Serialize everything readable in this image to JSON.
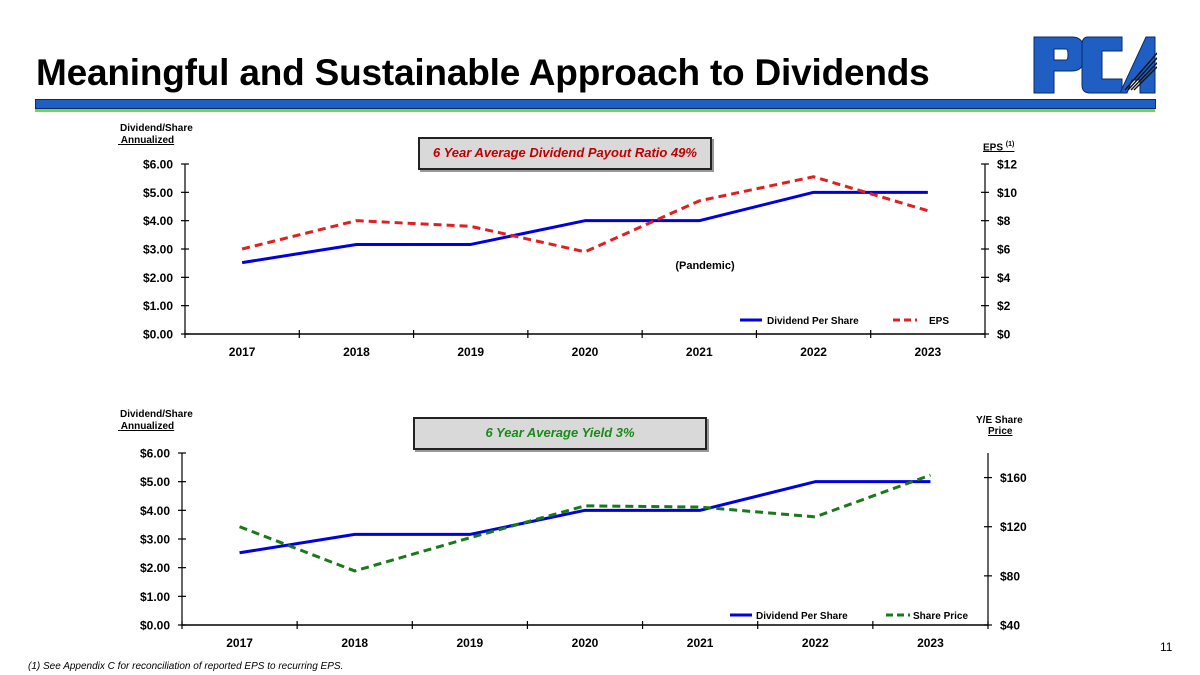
{
  "header": {
    "title": "Meaningful and Sustainable Approach to Dividends",
    "logo_text": "PCA"
  },
  "colors": {
    "title_bar": "#1f5fc4",
    "accent_line": "#66e040",
    "dividend": "#0000e0",
    "eps": "#e02020",
    "share_price": "#1a7a1a",
    "callout_red": "#c00000",
    "callout_green": "#1a8a1a"
  },
  "chart_data": [
    {
      "type": "line",
      "callout": "6 Year Average Dividend Payout Ratio 49%",
      "ylabel_left": [
        "Dividend/Share",
        "Annualized"
      ],
      "ylabel_right": "EPS",
      "ylabel_right_sup": "(1)",
      "annotation": "(Pandemic)",
      "categories": [
        "2017",
        "2018",
        "2019",
        "2020",
        "2021",
        "2022",
        "2023"
      ],
      "ylim_left": [
        0,
        6
      ],
      "yticks_left": [
        "$0.00",
        "$1.00",
        "$2.00",
        "$3.00",
        "$4.00",
        "$5.00",
        "$6.00"
      ],
      "ylim_right": [
        0,
        12
      ],
      "yticks_right": [
        "$0",
        "$2",
        "$4",
        "$6",
        "$8",
        "$10",
        "$12"
      ],
      "legend": "bottom-right",
      "grid": false,
      "series": [
        {
          "name": "Dividend Per Share",
          "axis": "left",
          "style": "solid",
          "color": "#0000e0",
          "values": [
            2.52,
            3.16,
            3.16,
            4.0,
            4.0,
            5.0,
            5.0
          ]
        },
        {
          "name": "EPS",
          "axis": "right",
          "style": "dashed",
          "color": "#e02020",
          "values": [
            6.0,
            8.0,
            7.6,
            5.8,
            9.4,
            11.1,
            8.7
          ]
        }
      ]
    },
    {
      "type": "line",
      "callout": "6 Year Average Yield 3%",
      "ylabel_left": [
        "Dividend/Share",
        "Annualized"
      ],
      "ylabel_right": [
        "Y/E Share",
        "Price"
      ],
      "categories": [
        "2017",
        "2018",
        "2019",
        "2020",
        "2021",
        "2022",
        "2023"
      ],
      "ylim_left": [
        0,
        6
      ],
      "yticks_left": [
        "$0.00",
        "$1.00",
        "$2.00",
        "$3.00",
        "$4.00",
        "$5.00",
        "$6.00"
      ],
      "ylim_right": [
        40,
        180
      ],
      "yticks_right": [
        "$40",
        "$80",
        "$120",
        "$160"
      ],
      "yticks_right_values": [
        40,
        80,
        120,
        160
      ],
      "legend": "bottom-right",
      "grid": false,
      "series": [
        {
          "name": "Dividend Per Share",
          "axis": "left",
          "style": "solid",
          "color": "#0000e0",
          "values": [
            2.52,
            3.16,
            3.16,
            4.0,
            4.0,
            5.0,
            5.0
          ]
        },
        {
          "name": "Share Price",
          "axis": "right",
          "style": "dashed",
          "color": "#1a7a1a",
          "values": [
            120,
            84,
            111,
            137,
            136,
            128,
            162
          ]
        }
      ]
    }
  ],
  "footer": {
    "page_number": "11",
    "footnote": "(1)  See Appendix C for reconciliation of reported EPS to recurring EPS."
  }
}
